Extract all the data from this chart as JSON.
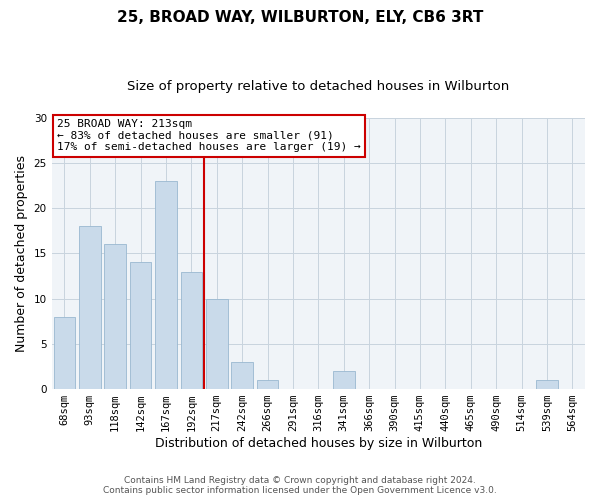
{
  "title": "25, BROAD WAY, WILBURTON, ELY, CB6 3RT",
  "subtitle": "Size of property relative to detached houses in Wilburton",
  "xlabel": "Distribution of detached houses by size in Wilburton",
  "ylabel": "Number of detached properties",
  "bar_labels": [
    "68sqm",
    "93sqm",
    "118sqm",
    "142sqm",
    "167sqm",
    "192sqm",
    "217sqm",
    "242sqm",
    "266sqm",
    "291sqm",
    "316sqm",
    "341sqm",
    "366sqm",
    "390sqm",
    "415sqm",
    "440sqm",
    "465sqm",
    "490sqm",
    "514sqm",
    "539sqm",
    "564sqm"
  ],
  "bar_values": [
    8,
    18,
    16,
    14,
    23,
    13,
    10,
    3,
    1,
    0,
    0,
    2,
    0,
    0,
    0,
    0,
    0,
    0,
    0,
    1,
    0
  ],
  "bar_color": "#c9daea",
  "bar_edge_color": "#9ab8d0",
  "vline_color": "#cc0000",
  "vline_x_index": 6,
  "ylim": [
    0,
    30
  ],
  "yticks": [
    0,
    5,
    10,
    15,
    20,
    25,
    30
  ],
  "annotation_title": "25 BROAD WAY: 213sqm",
  "annotation_line1": "← 83% of detached houses are smaller (91)",
  "annotation_line2": "17% of semi-detached houses are larger (19) →",
  "footer1": "Contains HM Land Registry data © Crown copyright and database right 2024.",
  "footer2": "Contains public sector information licensed under the Open Government Licence v3.0.",
  "background_color": "#ffffff",
  "plot_bg_color": "#f0f4f8",
  "grid_color": "#c8d4de",
  "title_fontsize": 11,
  "subtitle_fontsize": 9.5,
  "axis_label_fontsize": 9,
  "tick_fontsize": 7.5,
  "annotation_fontsize": 8,
  "footer_fontsize": 6.5
}
